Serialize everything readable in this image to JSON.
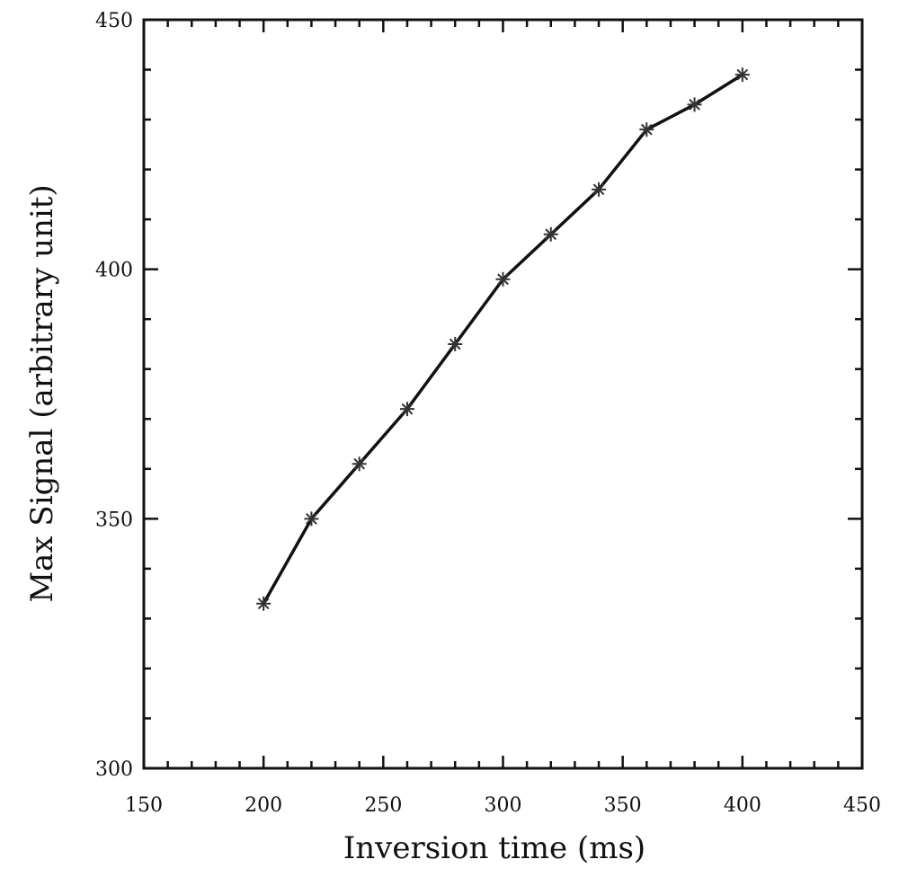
{
  "chart_data": {
    "type": "line",
    "xlabel": "Inversion time (ms)",
    "ylabel": "Max Signal (arbitrary unit)",
    "xlim": [
      150,
      450
    ],
    "ylim": [
      300,
      450
    ],
    "x_ticks": [
      150,
      200,
      250,
      300,
      350,
      400,
      450
    ],
    "y_ticks": [
      300,
      350,
      400,
      450
    ],
    "x_tick_labels": [
      "150",
      "200",
      "250",
      "300",
      "350",
      "400",
      "450"
    ],
    "y_tick_labels": [
      "300",
      "350",
      "400",
      "450"
    ],
    "marker": "asterisk",
    "grid": false,
    "series": [
      {
        "x": [
          200,
          220,
          240,
          260,
          280,
          300,
          320,
          340,
          360,
          380,
          400
        ],
        "y": [
          333,
          350,
          361,
          372,
          385,
          398,
          407,
          416,
          428,
          433,
          439
        ]
      }
    ],
    "colors": {
      "line": "#111111",
      "marker": "#333333",
      "axis": "#111111"
    }
  }
}
